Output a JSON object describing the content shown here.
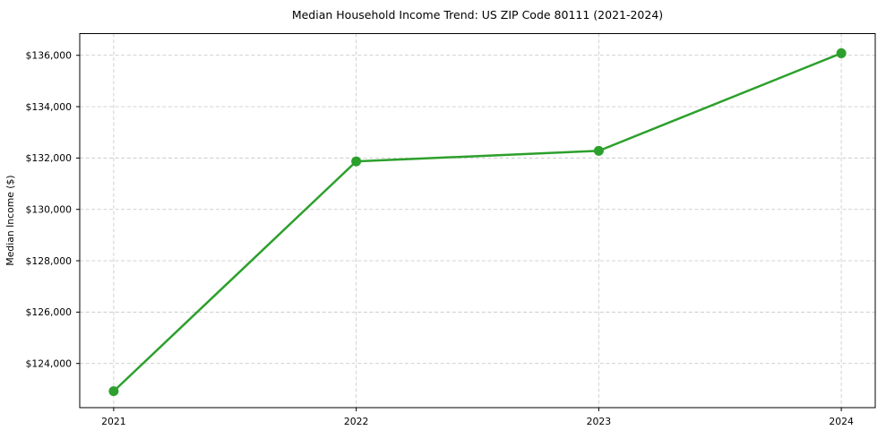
{
  "chart_data": {
    "type": "line",
    "title": "Median Household Income Trend: US ZIP Code 80111 (2021-2024)",
    "xlabel": "",
    "ylabel": "Median Income ($)",
    "x": [
      2021,
      2022,
      2023,
      2024
    ],
    "series": [
      {
        "name": "Median Household Income",
        "values": [
          122920,
          131870,
          132280,
          136080
        ]
      }
    ],
    "x_tick_labels": [
      "2021",
      "2022",
      "2023",
      "2024"
    ],
    "y_ticks": [
      124000,
      126000,
      128000,
      130000,
      132000,
      134000,
      136000
    ],
    "y_tick_labels": [
      "$124,000",
      "$126,000",
      "$128,000",
      "$130,000",
      "$132,000",
      "$134,000",
      "$136,000"
    ],
    "xlim": [
      2020.86,
      2024.14
    ],
    "ylim": [
      122280,
      136845
    ],
    "grid": true,
    "grid_style": "dashed",
    "legend": false,
    "colors": {
      "line": "#2ca02c",
      "marker": "#2ca02c",
      "grid": "#cccccc",
      "axis": "#000000",
      "background": "#ffffff"
    }
  }
}
